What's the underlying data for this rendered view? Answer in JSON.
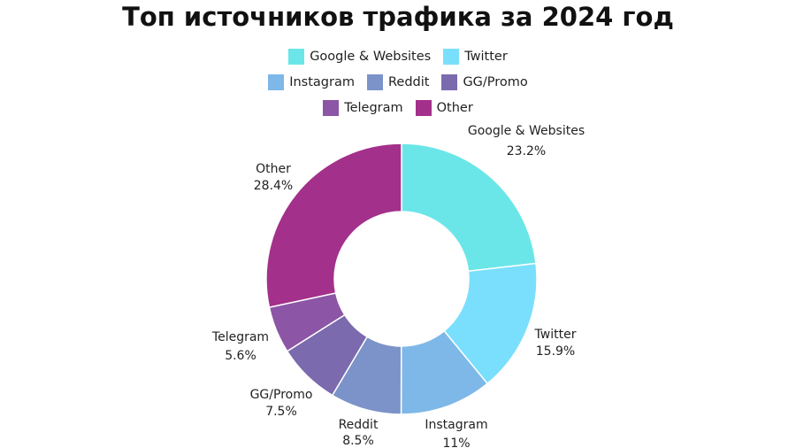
{
  "chart_data": {
    "type": "pie",
    "donut": true,
    "title": "Топ источников трафика за 2024 год",
    "legend_position": "top",
    "slices": [
      {
        "label": "Google & Websites",
        "value": 23.2,
        "value_label": "23.2%",
        "color": "#6BE6E8"
      },
      {
        "label": "Twitter",
        "value": 15.9,
        "value_label": "15.9%",
        "color": "#7ADFFC"
      },
      {
        "label": "Instagram",
        "value": 11,
        "value_label": "11%",
        "color": "#7EB8E8"
      },
      {
        "label": "Reddit",
        "value": 8.5,
        "value_label": "8.5%",
        "color": "#7B93C8"
      },
      {
        "label": "GG/Promo",
        "value": 7.5,
        "value_label": "7.5%",
        "color": "#7B6AAE"
      },
      {
        "label": "Telegram",
        "value": 5.6,
        "value_label": "5.6%",
        "color": "#8C55A5"
      },
      {
        "label": "Other",
        "value": 28.4,
        "value_label": "28.4%",
        "color": "#A3308A"
      }
    ]
  }
}
